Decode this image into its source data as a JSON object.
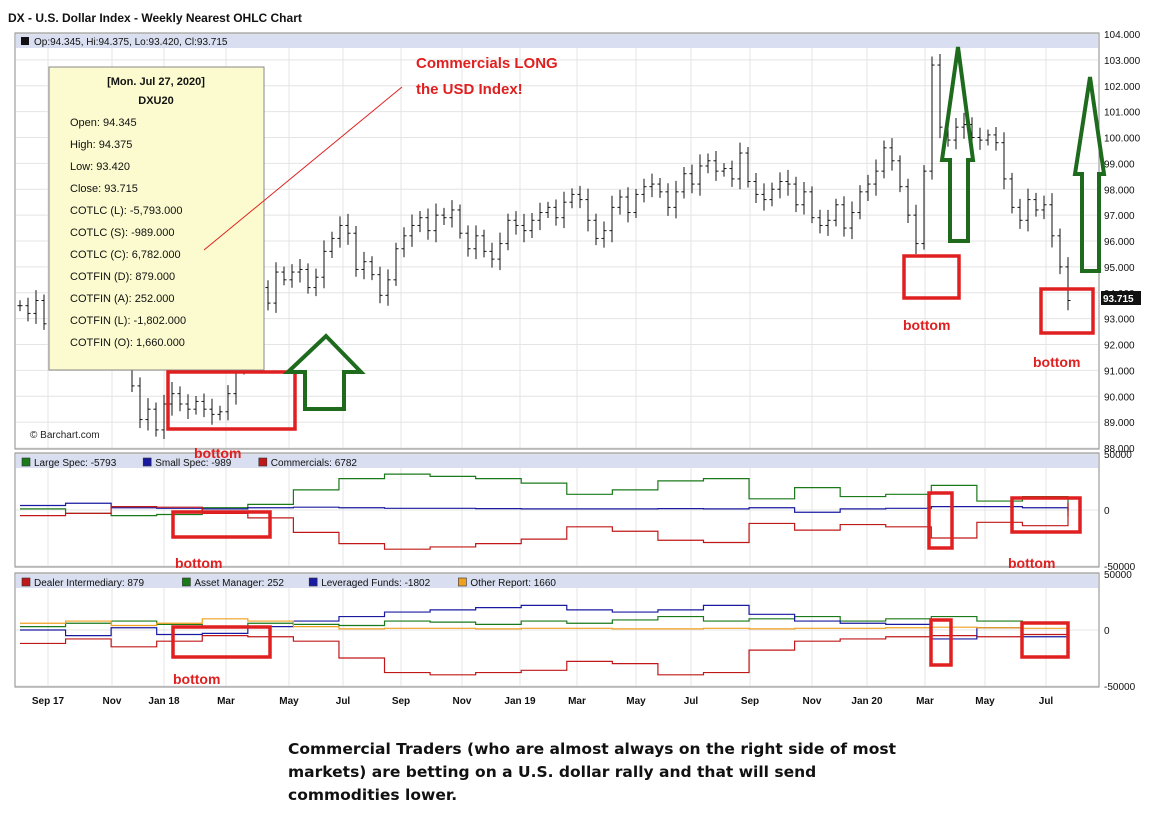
{
  "title": "DX - U.S. Dollar Index - Weekly Nearest OHLC Chart",
  "price_header": "Op:94.345, Hi:94.375, Lo:93.420, Cl:93.715",
  "last_price_label": "93.715",
  "watermark": "© Barchart.com",
  "tooltip": {
    "date": "[Mon. Jul 27, 2020]",
    "symbol": "DXU20",
    "lines": [
      "Open: 94.345",
      "High: 94.375",
      "Low: 93.420",
      "Close: 93.715",
      "COTLC (L): -5,793.000",
      "COTLC (S): -989.000",
      "COTLC (C): 6,782.000",
      "COTFIN (D): 879.000",
      "COTFIN (A): 252.000",
      "COTFIN (L): -1,802.000",
      "COTFIN (O): 1,660.000"
    ]
  },
  "annotations": {
    "commercials_line1": "Commercials LONG",
    "commercials_line2": "the USD Index!",
    "bottom_label": "bottom",
    "caption": "Commercial Traders (who are almost always on the right side of most markets) are betting on a U.S. dollar rally and that will send commodities lower."
  },
  "colors": {
    "annotation_red": "#e02020",
    "arrow_green": "#1e6b1e",
    "large_spec": "#1a7a1a",
    "small_spec": "#1a1aa0",
    "commercials": "#c01818",
    "dealer": "#c01818",
    "asset_manager": "#1a7a1a",
    "leveraged": "#1a1aa0",
    "other": "#f0a020",
    "tooltip_bg": "#fbfbcf"
  },
  "chart_data": [
    {
      "type": "ohlc",
      "name": "DX - U.S. Dollar Index weekly",
      "x_tick_labels": [
        "Sep 17",
        "Nov",
        "Jan 18",
        "Mar",
        "May",
        "Jul",
        "Sep",
        "Nov",
        "Jan 19",
        "Mar",
        "May",
        "Jul",
        "Sep",
        "Nov",
        "Jan 20",
        "Mar",
        "May",
        "Jul"
      ],
      "y_ticks": [
        "104.000",
        "103.000",
        "102.000",
        "101.000",
        "100.000",
        "99.000",
        "98.000",
        "97.000",
        "96.000",
        "95.000",
        "94.000",
        "93.000",
        "92.000",
        "91.000",
        "90.000",
        "89.000",
        "88.000"
      ],
      "ylim": [
        88,
        104
      ],
      "closes": [
        93.5,
        93.2,
        93.7,
        92.8,
        92.1,
        93.1,
        94.1,
        94.4,
        94.0,
        93.2,
        92.9,
        92.4,
        92.0,
        91.4,
        90.4,
        89.1,
        89.5,
        88.7,
        89.7,
        90.1,
        89.7,
        89.5,
        89.8,
        89.5,
        89.3,
        89.4,
        90.1,
        91.1,
        92.5,
        93.6,
        94.2,
        93.6,
        94.8,
        94.5,
        94.8,
        94.9,
        94.2,
        94.6,
        95.6,
        96.1,
        96.6,
        96.3,
        94.9,
        95.2,
        94.7,
        93.9,
        94.5,
        95.7,
        96.2,
        96.6,
        96.9,
        96.4,
        97.0,
        96.9,
        97.2,
        96.3,
        95.7,
        96.2,
        95.6,
        95.3,
        95.9,
        96.8,
        96.6,
        96.4,
        96.8,
        97.1,
        97.3,
        96.9,
        97.5,
        97.8,
        97.6,
        96.8,
        96.1,
        96.4,
        97.3,
        97.7,
        97.1,
        97.8,
        98.1,
        98.2,
        97.9,
        97.3,
        97.9,
        98.6,
        98.2,
        98.9,
        99.1,
        98.7,
        98.8,
        98.4,
        99.4,
        98.3,
        97.8,
        97.6,
        98.0,
        98.3,
        98.2,
        97.4,
        97.9,
        96.9,
        96.6,
        96.8,
        97.4,
        96.5,
        97.1,
        97.9,
        98.2,
        98.7,
        99.6,
        99.1,
        98.1,
        97.0,
        95.9,
        98.7,
        102.8,
        100.4,
        99.9,
        100.4,
        100.5,
        100.0,
        99.9,
        100.1,
        99.8,
        98.4,
        97.3,
        96.8,
        97.6,
        97.2,
        97.4,
        96.2,
        95.0,
        93.7
      ],
      "last_close": 93.715
    },
    {
      "type": "line",
      "name": "COT Legacy (COTLC)",
      "legend": [
        {
          "label": "Large Spec: -5793",
          "value": -5793
        },
        {
          "label": "Small Spec: -989",
          "value": -989
        },
        {
          "label": "Commercials: 6782",
          "value": 6782
        }
      ],
      "y_ticks": [
        "50000",
        "0",
        "-50000"
      ],
      "ylim": [
        -50000,
        50000
      ],
      "series": [
        {
          "name": "Large Spec",
          "values": [
            1000,
            -3000,
            -5000,
            -4000,
            2000,
            5000,
            18000,
            28000,
            32000,
            30000,
            28000,
            24000,
            14000,
            18000,
            26000,
            28000,
            10000,
            20000,
            12000,
            14000,
            22000,
            8000,
            12000,
            -5793
          ]
        },
        {
          "name": "Small Spec",
          "values": [
            4000,
            6000,
            2000,
            1500,
            1000,
            2000,
            2500,
            2000,
            1500,
            1500,
            1200,
            1000,
            1000,
            1000,
            1200,
            1000,
            2000,
            -2000,
            1000,
            1500,
            3000,
            3000,
            2000,
            -989
          ]
        },
        {
          "name": "Commercials",
          "values": [
            -5000,
            -3000,
            3000,
            2500,
            -3000,
            -7000,
            -20000,
            -30000,
            -35000,
            -33000,
            -30000,
            -26000,
            -15000,
            -19000,
            -27000,
            -29000,
            -12000,
            -18000,
            -13000,
            -15000,
            -25000,
            -11000,
            -14000,
            6782
          ]
        }
      ]
    },
    {
      "type": "line",
      "name": "COT Financial (COTFIN)",
      "legend": [
        {
          "label": "Dealer Intermediary: 879",
          "value": 879
        },
        {
          "label": "Asset Manager: 252",
          "value": 252
        },
        {
          "label": "Leveraged Funds: -1802",
          "value": -1802
        },
        {
          "label": "Other Report: 1660",
          "value": 1660
        }
      ],
      "y_ticks": [
        "50000",
        "0",
        "-50000"
      ],
      "ylim": [
        -50000,
        50000
      ],
      "series": [
        {
          "name": "Dealer Intermediary",
          "values": [
            -12000,
            -8000,
            -15000,
            -10000,
            -5000,
            -6000,
            -10000,
            -25000,
            -38000,
            -40000,
            -38000,
            -36000,
            -28000,
            -30000,
            -40000,
            -38000,
            -18000,
            -10000,
            -8000,
            -6000,
            -5000,
            -6000,
            -4000,
            879
          ]
        },
        {
          "name": "Asset Manager",
          "values": [
            3000,
            6000,
            8000,
            5000,
            3000,
            6000,
            5000,
            4000,
            8000,
            7000,
            5000,
            8000,
            6000,
            9000,
            12000,
            8000,
            10000,
            12000,
            8000,
            10000,
            12000,
            8000,
            6000,
            252
          ]
        },
        {
          "name": "Leveraged Funds",
          "values": [
            0,
            -5000,
            2000,
            -4000,
            -3000,
            3000,
            8000,
            12000,
            16000,
            18000,
            20000,
            22000,
            18000,
            16000,
            18000,
            22000,
            14000,
            8000,
            6000,
            5000,
            -8000,
            2000,
            -6000,
            -1802
          ]
        },
        {
          "name": "Other Report",
          "values": [
            6000,
            8000,
            4000,
            6000,
            10000,
            8000,
            3000,
            1000,
            1500,
            1500,
            1000,
            1500,
            1500,
            1000,
            1000,
            1500,
            1000,
            1500,
            1500,
            2000,
            2500,
            2000,
            1500,
            1660
          ]
        }
      ]
    }
  ]
}
